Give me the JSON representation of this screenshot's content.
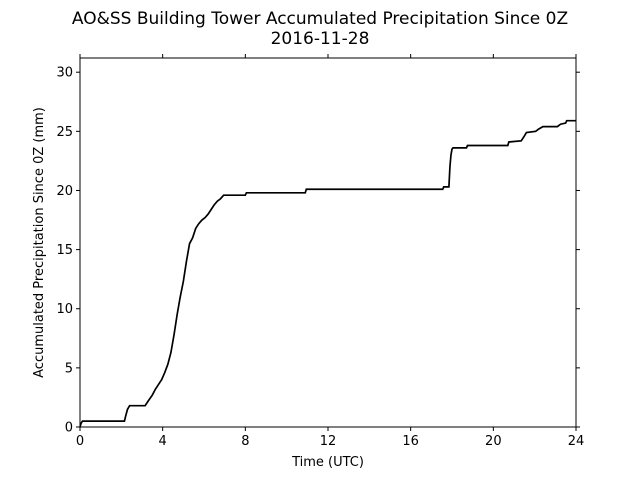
{
  "chart_data": {
    "type": "line",
    "title": "AO&SS Building Tower Accumulated Precipitation Since 0Z",
    "subtitle": "2016-11-28",
    "xlabel": "Time (UTC)",
    "ylabel": "Accumulated Precipitation Since 0Z (mm)",
    "xlim": [
      0,
      24
    ],
    "ylim": [
      0,
      31.2
    ],
    "xticks": [
      0,
      4,
      8,
      12,
      16,
      20,
      24
    ],
    "xtick_labels": [
      "0",
      "4",
      "8",
      "12",
      "16",
      "20",
      "24"
    ],
    "yticks": [
      0,
      5,
      10,
      15,
      20,
      25,
      30
    ],
    "ytick_labels": [
      "0",
      "5",
      "10",
      "15",
      "20",
      "25",
      "30"
    ],
    "grid": false,
    "legend": "none",
    "series": [
      {
        "color": "#000000",
        "x": [
          0.0,
          0.05,
          0.12,
          2.15,
          2.22,
          2.3,
          2.4,
          3.15,
          3.3,
          3.5,
          3.65,
          3.8,
          3.95,
          4.1,
          4.25,
          4.4,
          4.55,
          4.7,
          4.85,
          5.0,
          5.15,
          5.3,
          5.45,
          5.6,
          5.75,
          5.9,
          6.05,
          6.2,
          6.35,
          6.5,
          6.65,
          6.8,
          6.95,
          7.1,
          7.25,
          7.4,
          8.0,
          8.05,
          10.9,
          10.95,
          17.55,
          17.6,
          17.85,
          17.9,
          17.95,
          18.0,
          18.05,
          18.7,
          18.75,
          20.7,
          20.75,
          21.35,
          21.5,
          21.6,
          22.05,
          22.2,
          22.4,
          23.1,
          23.25,
          23.5,
          23.55,
          24.0
        ],
        "y": [
          0.0,
          0.3,
          0.5,
          0.5,
          1.0,
          1.5,
          1.8,
          1.8,
          2.2,
          2.7,
          3.2,
          3.6,
          4.0,
          4.6,
          5.3,
          6.3,
          7.8,
          9.5,
          11.0,
          12.3,
          14.0,
          15.5,
          16.0,
          16.8,
          17.2,
          17.5,
          17.7,
          18.0,
          18.4,
          18.8,
          19.1,
          19.3,
          19.6,
          19.6,
          19.6,
          19.6,
          19.6,
          19.8,
          19.8,
          20.1,
          20.1,
          20.3,
          20.3,
          22.0,
          23.0,
          23.5,
          23.6,
          23.6,
          23.8,
          23.8,
          24.1,
          24.2,
          24.6,
          24.9,
          25.0,
          25.2,
          25.4,
          25.4,
          25.6,
          25.7,
          25.9,
          25.9
        ]
      }
    ]
  }
}
